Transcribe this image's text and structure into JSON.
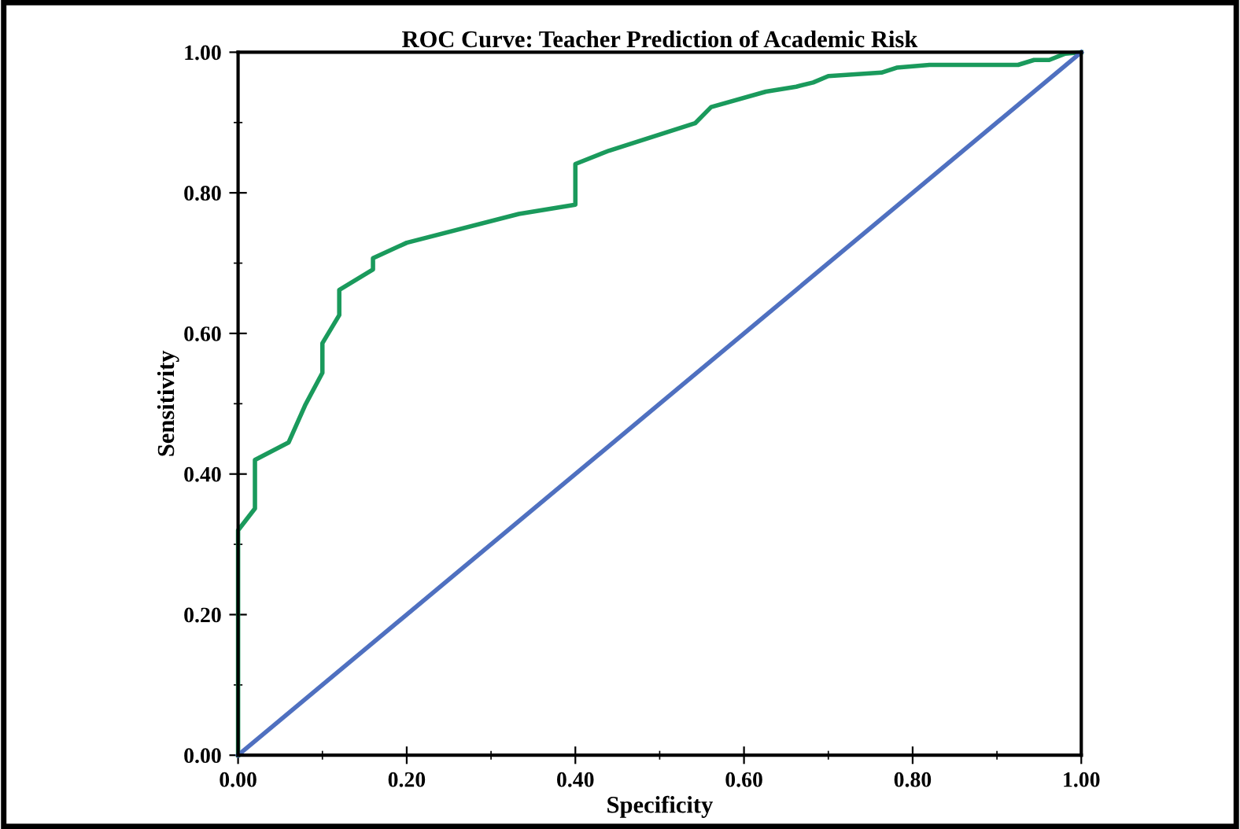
{
  "chart_data": {
    "type": "line",
    "title": "ROC Curve: Teacher Prediction of Academic Risk",
    "xlabel": "Specificity",
    "ylabel": "Sensitivity",
    "xlim": [
      0,
      1
    ],
    "ylim": [
      0,
      1
    ],
    "xticks": [
      {
        "value": 0,
        "label": "0.00"
      },
      {
        "value": 0.2,
        "label": "0.20"
      },
      {
        "value": 0.4,
        "label": "0.40"
      },
      {
        "value": 0.6,
        "label": "0.60"
      },
      {
        "value": 0.8,
        "label": "0.80"
      },
      {
        "value": 1,
        "label": "1.00"
      }
    ],
    "yticks": [
      {
        "value": 0,
        "label": "0.00"
      },
      {
        "value": 0.2,
        "label": "0.20"
      },
      {
        "value": 0.4,
        "label": "0.40"
      },
      {
        "value": 0.6,
        "label": "0.60"
      },
      {
        "value": 0.8,
        "label": "0.80"
      },
      {
        "value": 1,
        "label": "1.00"
      }
    ],
    "grid": false,
    "legend": false,
    "marker": "none",
    "line_style": "solid",
    "series": [
      {
        "color": "#1a9a5c",
        "x": [
          0,
          0,
          0.02,
          0.02,
          0.06,
          0.08,
          0.1,
          0.1,
          0.12,
          0.12,
          0.16,
          0.16,
          0.2,
          0.333,
          0.4,
          0.4,
          0.44,
          0.542,
          0.561,
          0.626,
          0.662,
          0.682,
          0.7,
          0.763,
          0.781,
          0.82,
          0.925,
          0.944,
          0.962,
          0.981,
          1
        ],
        "values": [
          0,
          0.32,
          0.351,
          0.42,
          0.445,
          0.499,
          0.544,
          0.586,
          0.626,
          0.662,
          0.691,
          0.707,
          0.729,
          0.77,
          0.783,
          0.841,
          0.86,
          0.899,
          0.922,
          0.944,
          0.951,
          0.957,
          0.966,
          0.971,
          0.978,
          0.982,
          0.982,
          0.989,
          0.989,
          0.998,
          1
        ]
      },
      {
        "color": "#4f70c0",
        "x": [
          0,
          1
        ],
        "values": [
          0,
          1
        ]
      }
    ]
  }
}
